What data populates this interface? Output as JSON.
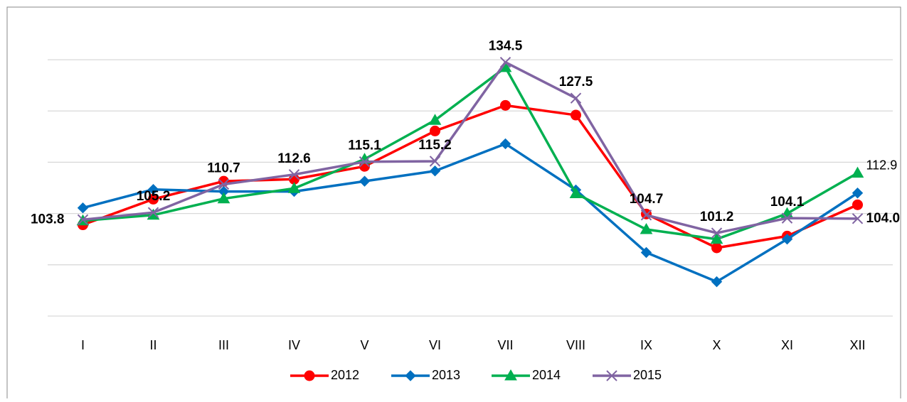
{
  "chart_data": {
    "type": "line",
    "categories": [
      "I",
      "II",
      "III",
      "IV",
      "V",
      "VI",
      "VII",
      "VIII",
      "IX",
      "X",
      "XI",
      "XII"
    ],
    "series": [
      {
        "name": "2012",
        "color": "#ff0000",
        "marker": "circle",
        "values": [
          102.8,
          107.8,
          111.3,
          111.7,
          114.2,
          121.1,
          126.1,
          124.2,
          104.9,
          98.3,
          100.6,
          106.7
        ]
      },
      {
        "name": "2013",
        "color": "#0070c0",
        "marker": "diamond",
        "values": [
          106.1,
          109.7,
          109.3,
          109.3,
          111.3,
          113.3,
          118.6,
          109.6,
          97.4,
          91.7,
          100.0,
          109.0
        ]
      },
      {
        "name": "2014",
        "color": "#00b050",
        "marker": "triangle",
        "values": [
          103.6,
          104.7,
          107.9,
          109.9,
          115.6,
          123.2,
          133.5,
          108.9,
          101.9,
          100.0,
          105.0,
          112.9
        ],
        "value_labels": [
          null,
          null,
          null,
          null,
          null,
          null,
          null,
          null,
          null,
          null,
          null,
          "112.9"
        ]
      },
      {
        "name": "2015",
        "color": "#8064a2",
        "marker": "x",
        "values": [
          103.8,
          105.2,
          110.7,
          112.6,
          115.1,
          115.2,
          134.5,
          127.5,
          104.7,
          101.2,
          104.1,
          104.0
        ],
        "value_labels": [
          "103.8",
          "105.2",
          "110.7",
          "112.6",
          "115.1",
          "115.2",
          "134.5",
          "127.5",
          "104.7",
          "101.2",
          "104.1",
          "104.0"
        ]
      }
    ],
    "ylim": [
      85,
      140
    ],
    "yticks": [
      85,
      95,
      105,
      115,
      125,
      135
    ],
    "grid": true,
    "legend": "bottom"
  }
}
